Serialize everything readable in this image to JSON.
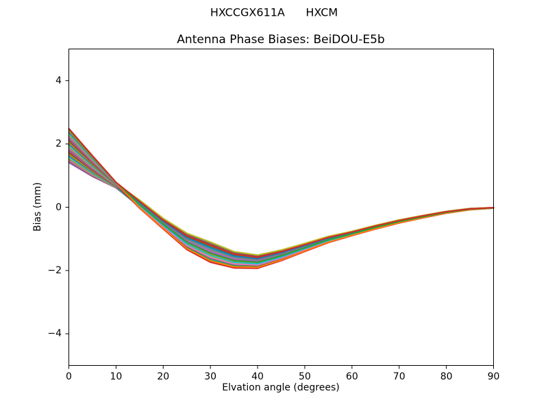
{
  "figure": {
    "suptitle": "HXCCGX611A      HXCM",
    "background_color": "#ffffff",
    "text_color": "#000000"
  },
  "chart_data": {
    "type": "line",
    "title": "Antenna Phase Biases: BeiDOU-E5b",
    "xlabel": "Elvation angle (degrees)",
    "ylabel": "Bias (mm)",
    "xlim": [
      0,
      90
    ],
    "ylim": [
      -5,
      5
    ],
    "x_ticks": [
      {
        "v": 0,
        "label": "0"
      },
      {
        "v": 10,
        "label": "10"
      },
      {
        "v": 20,
        "label": "20"
      },
      {
        "v": 30,
        "label": "30"
      },
      {
        "v": 40,
        "label": "40"
      },
      {
        "v": 50,
        "label": "50"
      },
      {
        "v": 60,
        "label": "60"
      },
      {
        "v": 70,
        "label": "70"
      },
      {
        "v": 80,
        "label": "80"
      },
      {
        "v": 90,
        "label": "90"
      }
    ],
    "y_ticks": [
      {
        "v": -4,
        "label": "−4"
      },
      {
        "v": -2,
        "label": "−2"
      },
      {
        "v": 0,
        "label": "0"
      },
      {
        "v": 2,
        "label": "2"
      },
      {
        "v": 4,
        "label": "4"
      }
    ],
    "grid": false,
    "legend": "none",
    "frame_color": "#000000",
    "line_width": 2,
    "x": [
      0,
      5,
      10,
      15,
      20,
      25,
      30,
      35,
      40,
      45,
      50,
      55,
      60,
      65,
      70,
      75,
      80,
      85,
      90
    ],
    "bundle_center": [
      1.95,
      1.3,
      0.7,
      0.1,
      -0.52,
      -1.08,
      -1.42,
      -1.66,
      -1.72,
      -1.52,
      -1.27,
      -1.02,
      -0.83,
      -0.63,
      -0.45,
      -0.3,
      -0.16,
      -0.06,
      -0.02
    ],
    "bundle_halfwidth": [
      0.54,
      0.33,
      0.09,
      0.13,
      0.17,
      0.26,
      0.32,
      0.26,
      0.21,
      0.17,
      0.13,
      0.1,
      0.07,
      0.06,
      0.05,
      0.04,
      0.03,
      0.02,
      0.01
    ],
    "crossover_x": 12.5,
    "series_rule": "value[j] = bundle_center[j] + f * bundle_halfwidth[j], where f = f_start when x[j] < crossover_x else f_end",
    "series": [
      {
        "color": "#9467bd",
        "f_start": -1.0,
        "f_end": -0.66
      },
      {
        "color": "#8c564b",
        "f_start": -0.93,
        "f_end": 0.1
      },
      {
        "color": "#e377c2",
        "f_start": -0.86,
        "f_end": 0.86
      },
      {
        "color": "#7f7f7f",
        "f_start": -0.79,
        "f_end": -0.45
      },
      {
        "color": "#bcbd22",
        "f_start": -0.72,
        "f_end": 0.31
      },
      {
        "color": "#17becf",
        "f_start": -0.66,
        "f_end": -0.72
      },
      {
        "color": "#1f77b4",
        "f_start": -0.59,
        "f_end": -0.24
      },
      {
        "color": "#ff7f0e",
        "f_start": -0.52,
        "f_end": 0.52
      },
      {
        "color": "#2ca02c",
        "f_start": -0.45,
        "f_end": -0.79
      },
      {
        "color": "#d62728",
        "f_start": -0.38,
        "f_end": -0.03
      },
      {
        "color": "#9467bd",
        "f_start": -0.31,
        "f_end": 0.72
      },
      {
        "color": "#8c564b",
        "f_start": -0.24,
        "f_end": -0.59
      },
      {
        "color": "#e377c2",
        "f_start": -0.17,
        "f_end": 0.17
      },
      {
        "color": "#7f7f7f",
        "f_start": -0.1,
        "f_end": 0.93
      },
      {
        "color": "#bcbd22",
        "f_start": -0.03,
        "f_end": -0.38
      },
      {
        "color": "#17becf",
        "f_start": 0.03,
        "f_end": 0.38
      },
      {
        "color": "#1f77b4",
        "f_start": 0.1,
        "f_end": -0.93
      },
      {
        "color": "#ff7f0e",
        "f_start": 0.17,
        "f_end": -0.17
      },
      {
        "color": "#2ca02c",
        "f_start": 0.24,
        "f_end": 0.59
      },
      {
        "color": "#d62728",
        "f_start": 0.31,
        "f_end": -1.0
      },
      {
        "color": "#9467bd",
        "f_start": 0.38,
        "f_end": 0.03
      },
      {
        "color": "#8c564b",
        "f_start": 0.45,
        "f_end": 0.79
      },
      {
        "color": "#e377c2",
        "f_start": 0.52,
        "f_end": -0.52
      },
      {
        "color": "#7f7f7f",
        "f_start": 0.59,
        "f_end": 0.24
      },
      {
        "color": "#bcbd22",
        "f_start": 0.66,
        "f_end": 1.0
      },
      {
        "color": "#17becf",
        "f_start": 0.72,
        "f_end": -0.31
      },
      {
        "color": "#1f77b4",
        "f_start": 0.79,
        "f_end": 0.45
      },
      {
        "color": "#ff7f0e",
        "f_start": 0.86,
        "f_end": -0.86
      },
      {
        "color": "#2ca02c",
        "f_start": 0.93,
        "f_end": -0.1
      },
      {
        "color": "#d62728",
        "f_start": 1.0,
        "f_end": 0.66
      }
    ]
  }
}
